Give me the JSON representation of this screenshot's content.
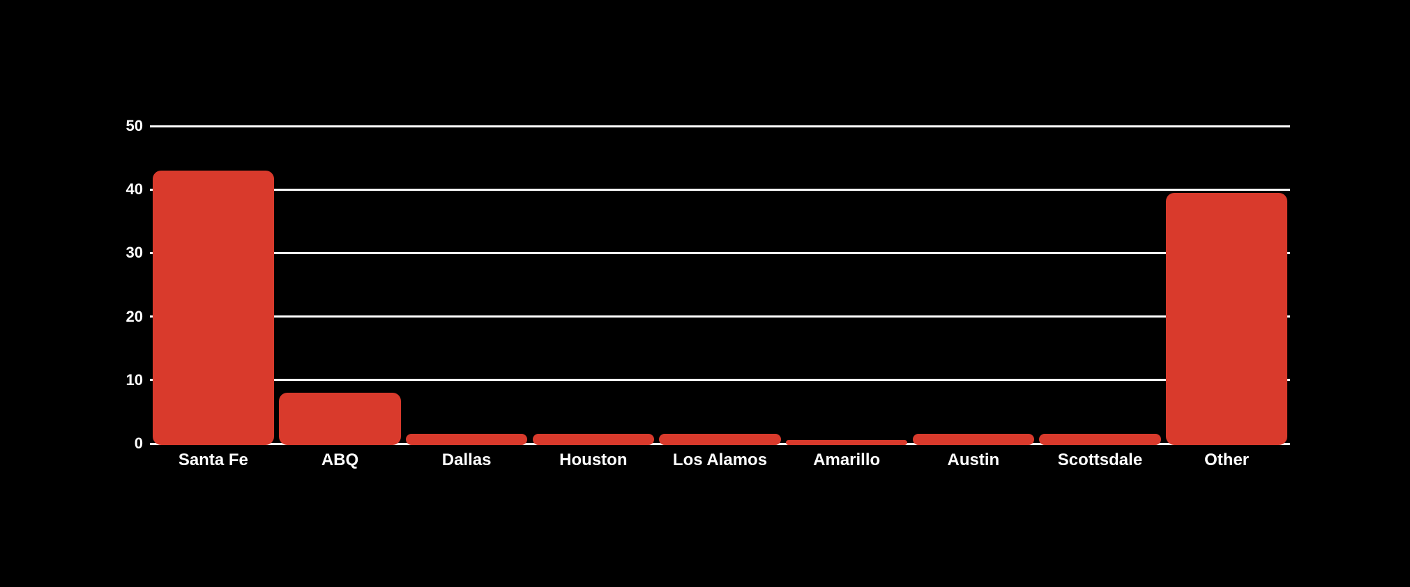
{
  "chart_data": {
    "type": "bar",
    "title": "",
    "categories": [
      "Santa Fe",
      "ABQ",
      "Dallas",
      "Houston",
      "Los Alamos",
      "Amarillo",
      "Austin",
      "Scottsdale",
      "Other"
    ],
    "values": [
      43,
      8,
      1.5,
      1.5,
      1.5,
      0.5,
      1.5,
      1.5,
      39.5
    ],
    "xlabel": "",
    "ylabel": "",
    "ylim": [
      0,
      50
    ],
    "yticks": [
      0,
      10,
      20,
      30,
      40,
      50
    ],
    "grid": true,
    "legend_position": "none",
    "colors": {
      "bar": "#d93a2c",
      "background": "#000000",
      "grid": "#ffffff",
      "text": "#ffffff"
    }
  }
}
